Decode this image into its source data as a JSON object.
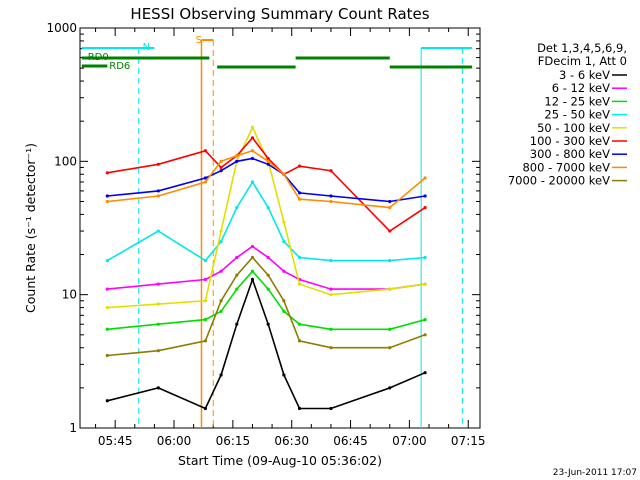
{
  "chart_data": {
    "type": "line",
    "title": "HESSI Observing Summary Count Rates",
    "xlabel": "Start Time (09-Aug-10 05:36:02)",
    "ylabel": "Count Rate (s⁻¹ detector⁻¹)",
    "yscale": "log",
    "ylim": [
      1,
      1000
    ],
    "xlim": [
      "05:36:02",
      "07:18:00"
    ],
    "x_ticks": [
      "05:45",
      "06:00",
      "06:15",
      "06:30",
      "06:45",
      "07:00",
      "07:15"
    ],
    "y_ticks": [
      "1",
      "10",
      "100",
      "1000"
    ],
    "grid": false,
    "legend_position": "right",
    "legend_header": [
      "Det 1,3,4,5,6,9,",
      "FDecim 1, Att 0"
    ],
    "footer_date": "23-Jun-2011 17:07",
    "series": [
      {
        "name": "3 - 6 keV",
        "color": "#000000",
        "x": [
          "05:43",
          "05:56",
          "06:08",
          "06:12",
          "06:16",
          "06:20",
          "06:24",
          "06:28",
          "06:32",
          "06:40",
          "06:55",
          "07:04"
        ],
        "values": [
          1.6,
          2.0,
          1.4,
          2.5,
          6,
          13,
          6,
          2.5,
          1.4,
          1.4,
          2.0,
          2.6
        ]
      },
      {
        "name": "6 - 12 keV",
        "color": "#ff00ff",
        "x": [
          "05:43",
          "05:56",
          "06:08",
          "06:12",
          "06:16",
          "06:20",
          "06:24",
          "06:28",
          "06:32",
          "06:40",
          "06:55",
          "07:04"
        ],
        "values": [
          11,
          12,
          13,
          15,
          19,
          23,
          19,
          15,
          13,
          11,
          11,
          12
        ]
      },
      {
        "name": "12 - 25 keV",
        "color": "#00dd00",
        "x": [
          "05:43",
          "05:56",
          "06:08",
          "06:12",
          "06:16",
          "06:20",
          "06:24",
          "06:28",
          "06:32",
          "06:40",
          "06:55",
          "07:04"
        ],
        "values": [
          5.5,
          6,
          6.5,
          7.5,
          11,
          15,
          11,
          7.5,
          6,
          5.5,
          5.5,
          6.5
        ]
      },
      {
        "name": "25 - 50 keV",
        "color": "#00e8e8",
        "x": [
          "05:43",
          "05:56",
          "06:08",
          "06:12",
          "06:16",
          "06:20",
          "06:24",
          "06:28",
          "06:32",
          "06:40",
          "06:55",
          "07:04"
        ],
        "values": [
          18,
          30,
          18,
          25,
          45,
          70,
          45,
          25,
          19,
          18,
          18,
          19
        ]
      },
      {
        "name": "50 - 100 keV",
        "color": "#e0e000",
        "x": [
          "05:43",
          "05:56",
          "06:08",
          "06:12",
          "06:16",
          "06:20",
          "06:24",
          "06:28",
          "06:32",
          "06:40",
          "06:55",
          "07:04"
        ],
        "values": [
          8,
          8.5,
          9,
          30,
          100,
          180,
          100,
          35,
          12,
          10,
          11,
          12
        ]
      },
      {
        "name": "100 - 300 keV",
        "color": "#ff0000",
        "x": [
          "05:43",
          "05:56",
          "06:08",
          "06:12",
          "06:16",
          "06:20",
          "06:24",
          "06:28",
          "06:32",
          "06:40",
          "06:55",
          "07:04"
        ],
        "values": [
          82,
          95,
          120,
          90,
          110,
          150,
          105,
          80,
          92,
          85,
          30,
          45
        ]
      },
      {
        "name": "300 - 800 keV",
        "color": "#0000ee",
        "x": [
          "05:43",
          "05:56",
          "06:08",
          "06:12",
          "06:16",
          "06:20",
          "06:24",
          "06:28",
          "06:32",
          "06:40",
          "06:55",
          "07:04"
        ],
        "values": [
          55,
          60,
          75,
          85,
          100,
          105,
          95,
          80,
          58,
          55,
          50,
          55
        ]
      },
      {
        "name": "800 - 7000 keV",
        "color": "#ff8c00",
        "x": [
          "05:43",
          "05:56",
          "06:08",
          "06:12",
          "06:16",
          "06:20",
          "06:24",
          "06:28",
          "06:32",
          "06:40",
          "06:55",
          "07:04"
        ],
        "values": [
          50,
          55,
          70,
          100,
          110,
          120,
          100,
          80,
          52,
          50,
          45,
          75
        ]
      },
      {
        "name": "7000 - 20000 keV",
        "color": "#8b7d00",
        "x": [
          "05:43",
          "05:56",
          "06:08",
          "06:12",
          "06:16",
          "06:20",
          "06:24",
          "06:28",
          "06:32",
          "06:40",
          "06:55",
          "07:04"
        ],
        "values": [
          3.5,
          3.8,
          4.5,
          9,
          14,
          19,
          14,
          9,
          4.5,
          4,
          4,
          5
        ]
      }
    ],
    "annotations": {
      "markers": [
        {
          "label": "N",
          "color": "#00e8e8"
        },
        {
          "label": "S",
          "color": "#ff8c00"
        },
        {
          "label": "RD0",
          "color": "#008000"
        },
        {
          "label": "RD6",
          "color": "#008000"
        }
      ]
    }
  }
}
